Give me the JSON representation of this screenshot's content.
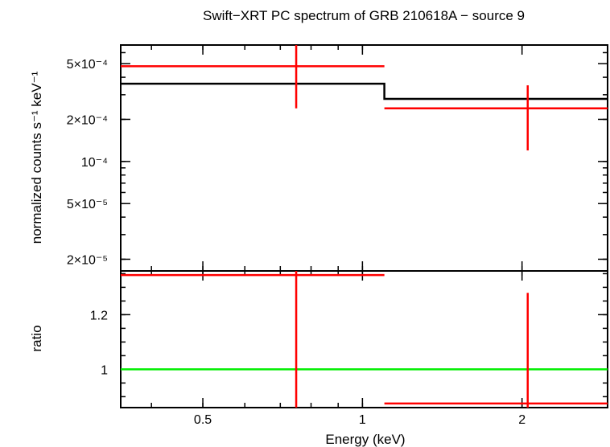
{
  "chart_data": {
    "title": "Swift−XRT PC spectrum of GRB 210618A − source 9",
    "xlabel": "Energy (keV)",
    "x_scale": "log",
    "xlim": [
      0.35,
      2.9
    ],
    "x_ticks": [
      {
        "value": 0.5,
        "label": "0.5"
      },
      {
        "value": 1,
        "label": "1"
      },
      {
        "value": 2,
        "label": "2"
      }
    ],
    "panels": [
      {
        "id": "spectrum",
        "type": "step",
        "ylabel": "normalized counts s⁻¹ keV⁻¹",
        "y_scale": "log",
        "ylim": [
          1.65e-05,
          0.00068
        ],
        "y_ticks": [
          {
            "value": 2e-05,
            "label": "2×10⁻⁵"
          },
          {
            "value": 5e-05,
            "label": "5×10⁻⁵"
          },
          {
            "value": 0.0001,
            "label": "10⁻⁴"
          },
          {
            "value": 0.0002,
            "label": "2×10⁻⁴"
          },
          {
            "value": 0.0005,
            "label": "5×10⁻⁴"
          }
        ],
        "series": [
          {
            "kind": "model-step",
            "color": "#000000",
            "steps": [
              {
                "x0": 0.35,
                "x1": 1.1,
                "y": 0.00036
              },
              {
                "x0": 1.1,
                "x1": 2.9,
                "y": 0.00028
              }
            ]
          },
          {
            "kind": "data-points",
            "color": "#ff0000",
            "points": [
              {
                "x": 0.75,
                "xlo": 0.35,
                "xhi": 1.1,
                "y": 0.00048,
                "ylo": 0.00024,
                "yhi": 0.00068
              },
              {
                "x": 2.05,
                "xlo": 1.1,
                "xhi": 2.9,
                "y": 0.00024,
                "ylo": 0.00012,
                "yhi": 0.00035
              }
            ]
          }
        ]
      },
      {
        "id": "ratio",
        "type": "step",
        "ylabel": "ratio",
        "y_scale": "linear",
        "ylim": [
          0.86,
          1.36
        ],
        "y_ticks": [
          {
            "value": 1,
            "label": "1"
          },
          {
            "value": 1.2,
            "label": "1.2"
          }
        ],
        "series": [
          {
            "kind": "reference-line",
            "color": "#00ee00",
            "y": 1
          },
          {
            "kind": "data-points",
            "color": "#ff0000",
            "points": [
              {
                "x": 0.75,
                "xlo": 0.35,
                "xhi": 1.1,
                "y": 1.345,
                "ylo": 0.86,
                "yhi": 1.36
              },
              {
                "x": 2.05,
                "xlo": 1.1,
                "xhi": 2.9,
                "y": 0.875,
                "ylo": 0.86,
                "yhi": 1.28
              }
            ]
          }
        ]
      }
    ]
  }
}
